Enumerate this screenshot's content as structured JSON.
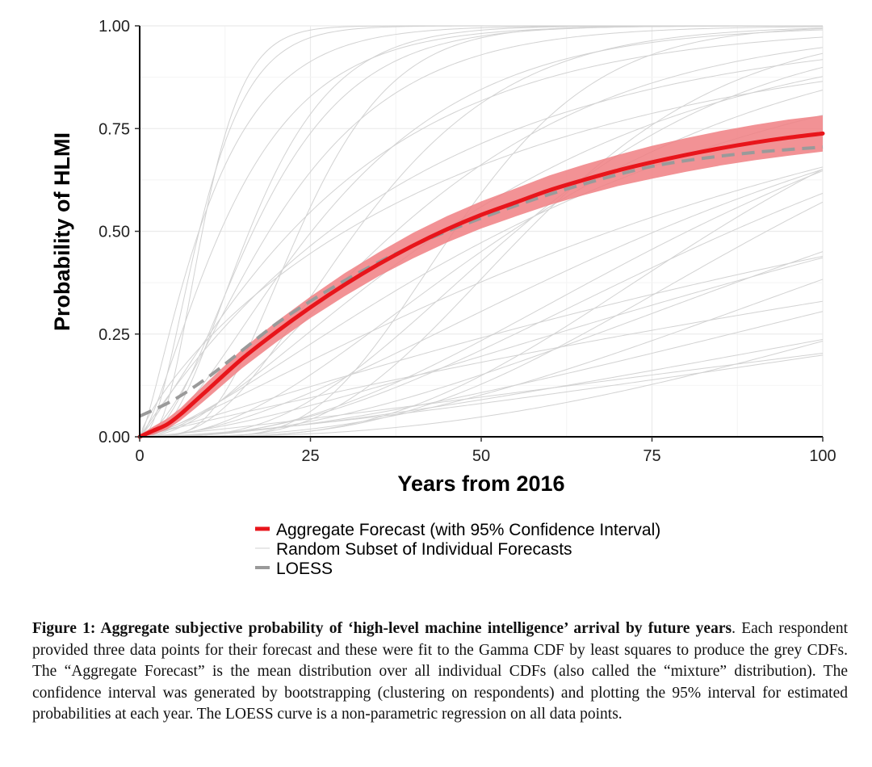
{
  "chart_data": {
    "type": "line",
    "xlabel": "Years from 2016",
    "ylabel": "Probability of HLMI",
    "xlim": [
      0,
      100
    ],
    "ylim": [
      0,
      1
    ],
    "x_ticks": [
      "0",
      "25",
      "50",
      "75",
      "100"
    ],
    "y_ticks": [
      "0.00",
      "0.25",
      "0.50",
      "0.75",
      "1.00"
    ],
    "grid": true,
    "legend_position": "bottom",
    "colors": {
      "aggregate": "#e8151b",
      "ci_band": "#f07f82",
      "loess": "#9a9a9a",
      "individual": "#d2d2d2"
    },
    "series": [
      {
        "name": "Aggregate Forecast (with 95% Confidence Interval)",
        "style": "solid-thick",
        "x": [
          0,
          2,
          4,
          6,
          8,
          10,
          15,
          20,
          25,
          30,
          35,
          40,
          45,
          50,
          55,
          60,
          65,
          70,
          75,
          80,
          85,
          90,
          95,
          100
        ],
        "values": [
          0.0,
          0.015,
          0.03,
          0.055,
          0.085,
          0.115,
          0.19,
          0.255,
          0.315,
          0.37,
          0.42,
          0.465,
          0.505,
          0.54,
          0.57,
          0.6,
          0.625,
          0.648,
          0.668,
          0.686,
          0.702,
          0.716,
          0.728,
          0.738
        ],
        "ci_lower": [
          0.0,
          0.005,
          0.018,
          0.04,
          0.067,
          0.095,
          0.167,
          0.23,
          0.289,
          0.342,
          0.391,
          0.434,
          0.473,
          0.507,
          0.536,
          0.564,
          0.588,
          0.61,
          0.628,
          0.645,
          0.66,
          0.673,
          0.684,
          0.694
        ],
        "ci_upper": [
          0.005,
          0.025,
          0.044,
          0.07,
          0.103,
          0.135,
          0.213,
          0.28,
          0.341,
          0.398,
          0.449,
          0.496,
          0.537,
          0.573,
          0.604,
          0.636,
          0.662,
          0.686,
          0.708,
          0.727,
          0.744,
          0.759,
          0.772,
          0.782
        ]
      },
      {
        "name": "Random Subset of Individual Forecasts",
        "style": "thin-grey",
        "individual_curves": [
          {
            "shape": 2.5,
            "scale": 4
          },
          {
            "shape": 4,
            "scale": 2.5
          },
          {
            "shape": 1.5,
            "scale": 10
          },
          {
            "shape": 3,
            "scale": 6
          },
          {
            "shape": 1.2,
            "scale": 25
          },
          {
            "shape": 2,
            "scale": 15
          },
          {
            "shape": 5,
            "scale": 5
          },
          {
            "shape": 1,
            "scale": 40
          },
          {
            "shape": 2.2,
            "scale": 20
          },
          {
            "shape": 3.5,
            "scale": 10
          },
          {
            "shape": 1.5,
            "scale": 45
          },
          {
            "shape": 1.8,
            "scale": 30
          },
          {
            "shape": 2.5,
            "scale": 25
          },
          {
            "shape": 4,
            "scale": 15
          },
          {
            "shape": 6,
            "scale": 10
          },
          {
            "shape": 1.3,
            "scale": 70
          },
          {
            "shape": 2,
            "scale": 45
          },
          {
            "shape": 3,
            "scale": 30
          },
          {
            "shape": 1.6,
            "scale": 90
          },
          {
            "shape": 2.5,
            "scale": 50
          },
          {
            "shape": 1.1,
            "scale": 150
          },
          {
            "shape": 1.5,
            "scale": 200
          },
          {
            "shape": 3,
            "scale": 45
          },
          {
            "shape": 1.2,
            "scale": 300
          },
          {
            "shape": 2,
            "scale": 90
          },
          {
            "shape": 8,
            "scale": 6
          },
          {
            "shape": 1.4,
            "scale": 8
          },
          {
            "shape": 4.5,
            "scale": 22
          },
          {
            "shape": 2.8,
            "scale": 35
          },
          {
            "shape": 0.8,
            "scale": 60
          },
          {
            "shape": 1.9,
            "scale": 12
          },
          {
            "shape": 3.2,
            "scale": 55
          },
          {
            "shape": 1.7,
            "scale": 140
          },
          {
            "shape": 2.4,
            "scale": 8
          },
          {
            "shape": 1,
            "scale": 250
          },
          {
            "shape": 5,
            "scale": 18
          }
        ]
      },
      {
        "name": "LOESS",
        "style": "dashed-grey",
        "x": [
          0,
          5,
          10,
          15,
          20,
          25,
          30,
          35,
          40,
          45,
          50,
          55,
          60,
          65,
          70,
          75,
          80,
          85,
          90,
          95,
          100
        ],
        "values": [
          0.05,
          0.09,
          0.145,
          0.21,
          0.275,
          0.33,
          0.38,
          0.425,
          0.465,
          0.5,
          0.532,
          0.562,
          0.59,
          0.615,
          0.638,
          0.658,
          0.672,
          0.683,
          0.692,
          0.699,
          0.705
        ]
      }
    ]
  },
  "caption": {
    "heading": "Figure 1: Aggregate subjective probability of ‘high-level machine intelligence’ arrival by future years",
    "body": ". Each respondent provided three data points for their forecast and these were fit to the Gamma CDF by least squares to produce the grey CDFs. The “Aggregate Forecast” is the mean distribution over all individual CDFs (also called the “mixture” distribution). The confidence interval was generated by bootstrapping (clustering on respondents) and plotting the 95% interval for estimated probabilities at each year. The LOESS curve is a non-parametric regression on all data points."
  }
}
